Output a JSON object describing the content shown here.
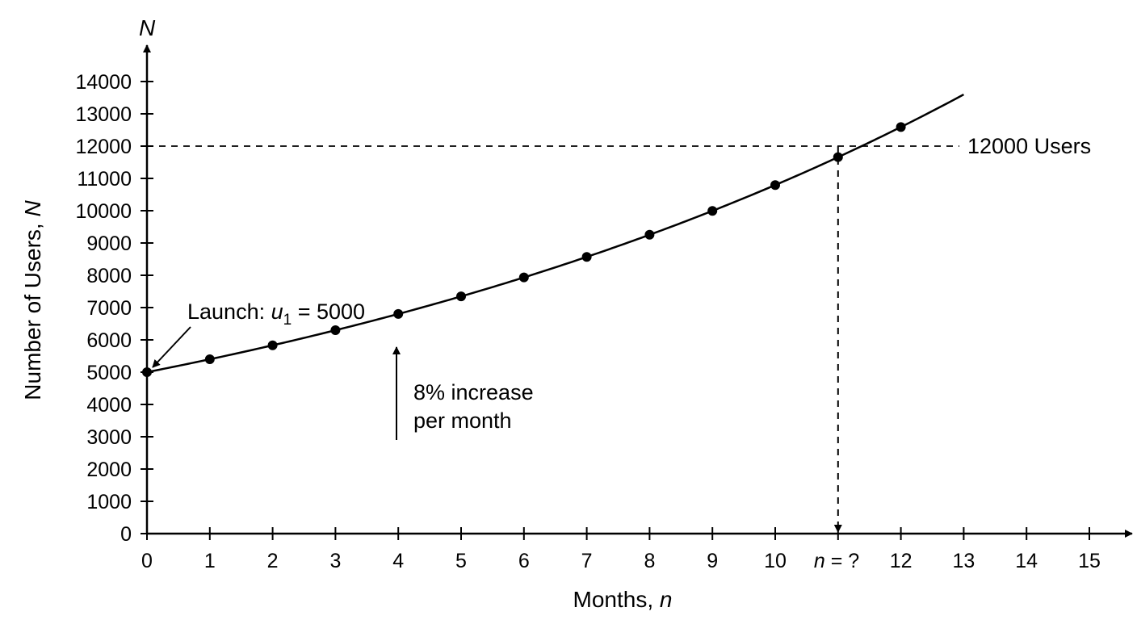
{
  "chart_data": {
    "type": "line",
    "title": "",
    "xlabel_main": "Months, ",
    "xlabel_var": "n",
    "ylabel_main": "Number of Users, ",
    "ylabel_var": "N",
    "y_axis_arrow_label": "N",
    "xlim": [
      0,
      15.5
    ],
    "ylim": [
      0,
      15000
    ],
    "x_ticks": [
      0,
      1,
      2,
      3,
      4,
      5,
      6,
      7,
      8,
      9,
      10,
      11,
      12,
      13,
      14,
      15
    ],
    "x_tick_labels": [
      "0",
      "1",
      "2",
      "3",
      "4",
      "5",
      "6",
      "7",
      "8",
      "9",
      "10",
      "",
      "12",
      "13",
      "14",
      "15"
    ],
    "x_tick_special": {
      "var": "n",
      "text": " = ?"
    },
    "y_ticks": [
      0,
      1000,
      2000,
      3000,
      4000,
      5000,
      6000,
      7000,
      8000,
      9000,
      10000,
      11000,
      12000,
      13000,
      14000
    ],
    "y_tick_labels": [
      "0",
      "1000",
      "2000",
      "3000",
      "4000",
      "5000",
      "6000",
      "7000",
      "8000",
      "9000",
      "10000",
      "11000",
      "12000",
      "13000",
      "14000"
    ],
    "grid": false,
    "series": [
      {
        "x": [
          0,
          1,
          2,
          3,
          4,
          5,
          6,
          7,
          8,
          9,
          10,
          11,
          12
        ],
        "y": [
          5000,
          5400,
          5832,
          6299,
          6802,
          7347,
          7934,
          8569,
          9255,
          9995,
          10795,
          11658,
          12591
        ],
        "curve_end_x": 13,
        "markers": true
      }
    ],
    "annotations": {
      "launch_text_a": "Launch: ",
      "launch_var": "u",
      "launch_sub": "1",
      "launch_text_b": " = 5000",
      "growth_line1": "8% increase",
      "growth_line2": "per month",
      "target_label": "12000 Users",
      "target_value": 12000,
      "target_x": 11
    }
  }
}
